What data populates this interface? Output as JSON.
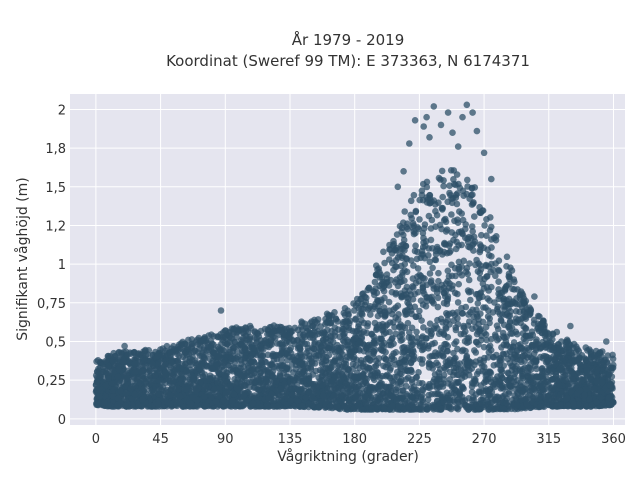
{
  "chart_data": {
    "type": "scatter",
    "title": "År 1979 - 2019",
    "subtitle": "Koordinat (Sweref 99 TM): E 373363, N 6174371",
    "xlabel": "Vågriktning (grader)",
    "ylabel": "Signifikant våghöjd (m)",
    "xlim": [
      -18,
      368
    ],
    "ylim": [
      -0.04,
      2.1
    ],
    "x_ticks": [
      0,
      45,
      90,
      135,
      180,
      225,
      270,
      315,
      360
    ],
    "x_tick_labels": [
      "0",
      "45",
      "90",
      "135",
      "180",
      "225",
      "270",
      "315",
      "360"
    ],
    "y_ticks": [
      0,
      0.25,
      0.5,
      0.75,
      1,
      1.25,
      1.5,
      1.75,
      2
    ],
    "y_tick_labels": [
      "0",
      "0,25",
      "0,5",
      "0,75",
      "1",
      "1,2",
      "1,5",
      "1,8",
      "2"
    ],
    "grid": true,
    "plot_background": "#e5e5ef",
    "marker_color": "#2e5068",
    "envelope": {
      "direction": [
        0,
        10,
        20,
        30,
        45,
        60,
        80,
        100,
        120,
        140,
        160,
        175,
        190,
        200,
        210,
        220,
        230,
        240,
        250,
        260,
        270,
        280,
        290,
        300,
        315,
        330,
        345,
        360
      ],
      "min_height": [
        0.09,
        0.08,
        0.08,
        0.08,
        0.08,
        0.08,
        0.08,
        0.08,
        0.08,
        0.08,
        0.07,
        0.06,
        0.06,
        0.06,
        0.06,
        0.06,
        0.06,
        0.06,
        0.06,
        0.06,
        0.06,
        0.06,
        0.06,
        0.07,
        0.08,
        0.08,
        0.08,
        0.09
      ],
      "max_height": [
        0.38,
        0.42,
        0.44,
        0.45,
        0.46,
        0.5,
        0.55,
        0.6,
        0.6,
        0.62,
        0.68,
        0.72,
        0.85,
        1.05,
        1.25,
        1.45,
        1.55,
        1.6,
        1.65,
        1.55,
        1.4,
        1.2,
        0.95,
        0.75,
        0.6,
        0.5,
        0.45,
        0.42
      ]
    },
    "outliers": [
      {
        "x": 222,
        "y": 1.93
      },
      {
        "x": 228,
        "y": 1.89
      },
      {
        "x": 230,
        "y": 1.95
      },
      {
        "x": 235,
        "y": 2.02
      },
      {
        "x": 240,
        "y": 1.9
      },
      {
        "x": 245,
        "y": 1.98
      },
      {
        "x": 248,
        "y": 1.85
      },
      {
        "x": 255,
        "y": 1.95
      },
      {
        "x": 258,
        "y": 2.03
      },
      {
        "x": 262,
        "y": 1.98
      },
      {
        "x": 265,
        "y": 1.86
      },
      {
        "x": 252,
        "y": 1.76
      },
      {
        "x": 232,
        "y": 1.82
      },
      {
        "x": 218,
        "y": 1.78
      },
      {
        "x": 214,
        "y": 1.6
      },
      {
        "x": 270,
        "y": 1.72
      },
      {
        "x": 275,
        "y": 1.55
      },
      {
        "x": 210,
        "y": 1.5
      },
      {
        "x": 200,
        "y": 1.08
      },
      {
        "x": 195,
        "y": 0.99
      },
      {
        "x": 87,
        "y": 0.7
      },
      {
        "x": 20,
        "y": 0.47
      },
      {
        "x": 305,
        "y": 0.79
      },
      {
        "x": 330,
        "y": 0.6
      },
      {
        "x": 355,
        "y": 0.5
      }
    ]
  }
}
